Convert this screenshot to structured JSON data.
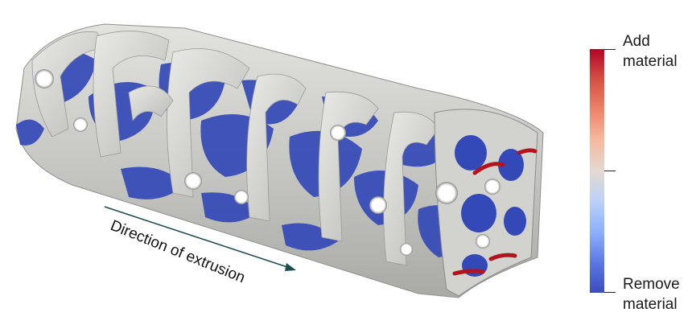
{
  "annotation": {
    "direction_label": "Direction of extrusion"
  },
  "colorbar": {
    "top_label_line1": "Add",
    "top_label_line2": "material",
    "bottom_label_line1": "Remove",
    "bottom_label_line2": "material",
    "colors": {
      "add": "#b40426",
      "neutral": "#dddddd",
      "remove": "#3b4cc0"
    }
  },
  "model": {
    "surface_color": "#c9c9c6",
    "remove_color": "#3449b8",
    "add_color": "#b3131c"
  }
}
